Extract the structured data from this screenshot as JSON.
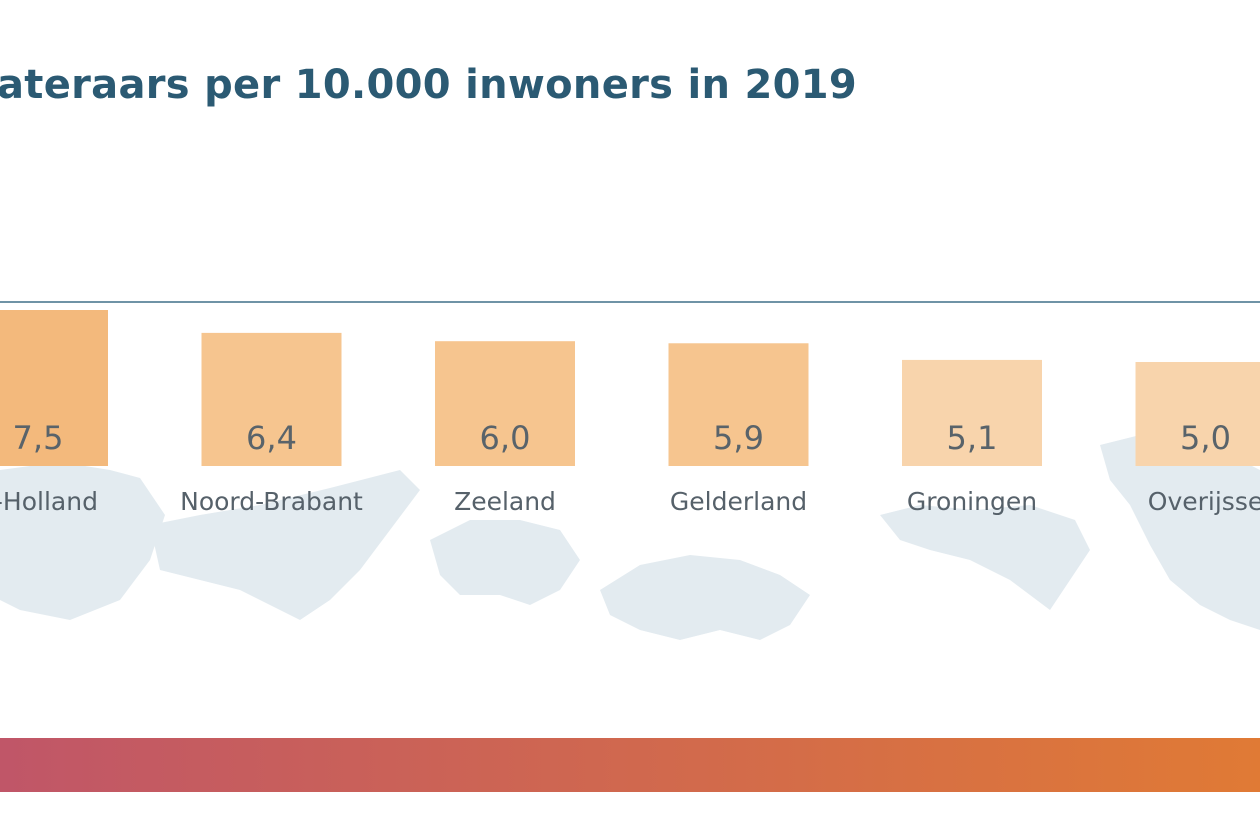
{
  "chart_data": {
    "type": "bar",
    "title": "ateraars per 10.000 inwoners in 2019",
    "categories": [
      "d-Holland",
      "Noord-Brabant",
      "Zeeland",
      "Gelderland",
      "Groningen",
      "Overijsse"
    ],
    "values": [
      7.5,
      6.4,
      6.0,
      5.9,
      5.1,
      5.0
    ],
    "value_labels": [
      "7,5",
      "6,4",
      "6,0",
      "5,9",
      "5,1",
      "5,0"
    ],
    "xlabel": "",
    "ylabel": "",
    "ylim": [
      0,
      7.9
    ],
    "grid": false
  },
  "colors": {
    "title": "#2b5a73",
    "axis_line": "#6f93a6",
    "bar_high": "#f3b97c",
    "bar_mid": "#f6c58f",
    "bar_low": "#f8d4ac",
    "map": "#e3ebf0",
    "gradient_start": "#c05668",
    "gradient_end": "#e07a35"
  }
}
